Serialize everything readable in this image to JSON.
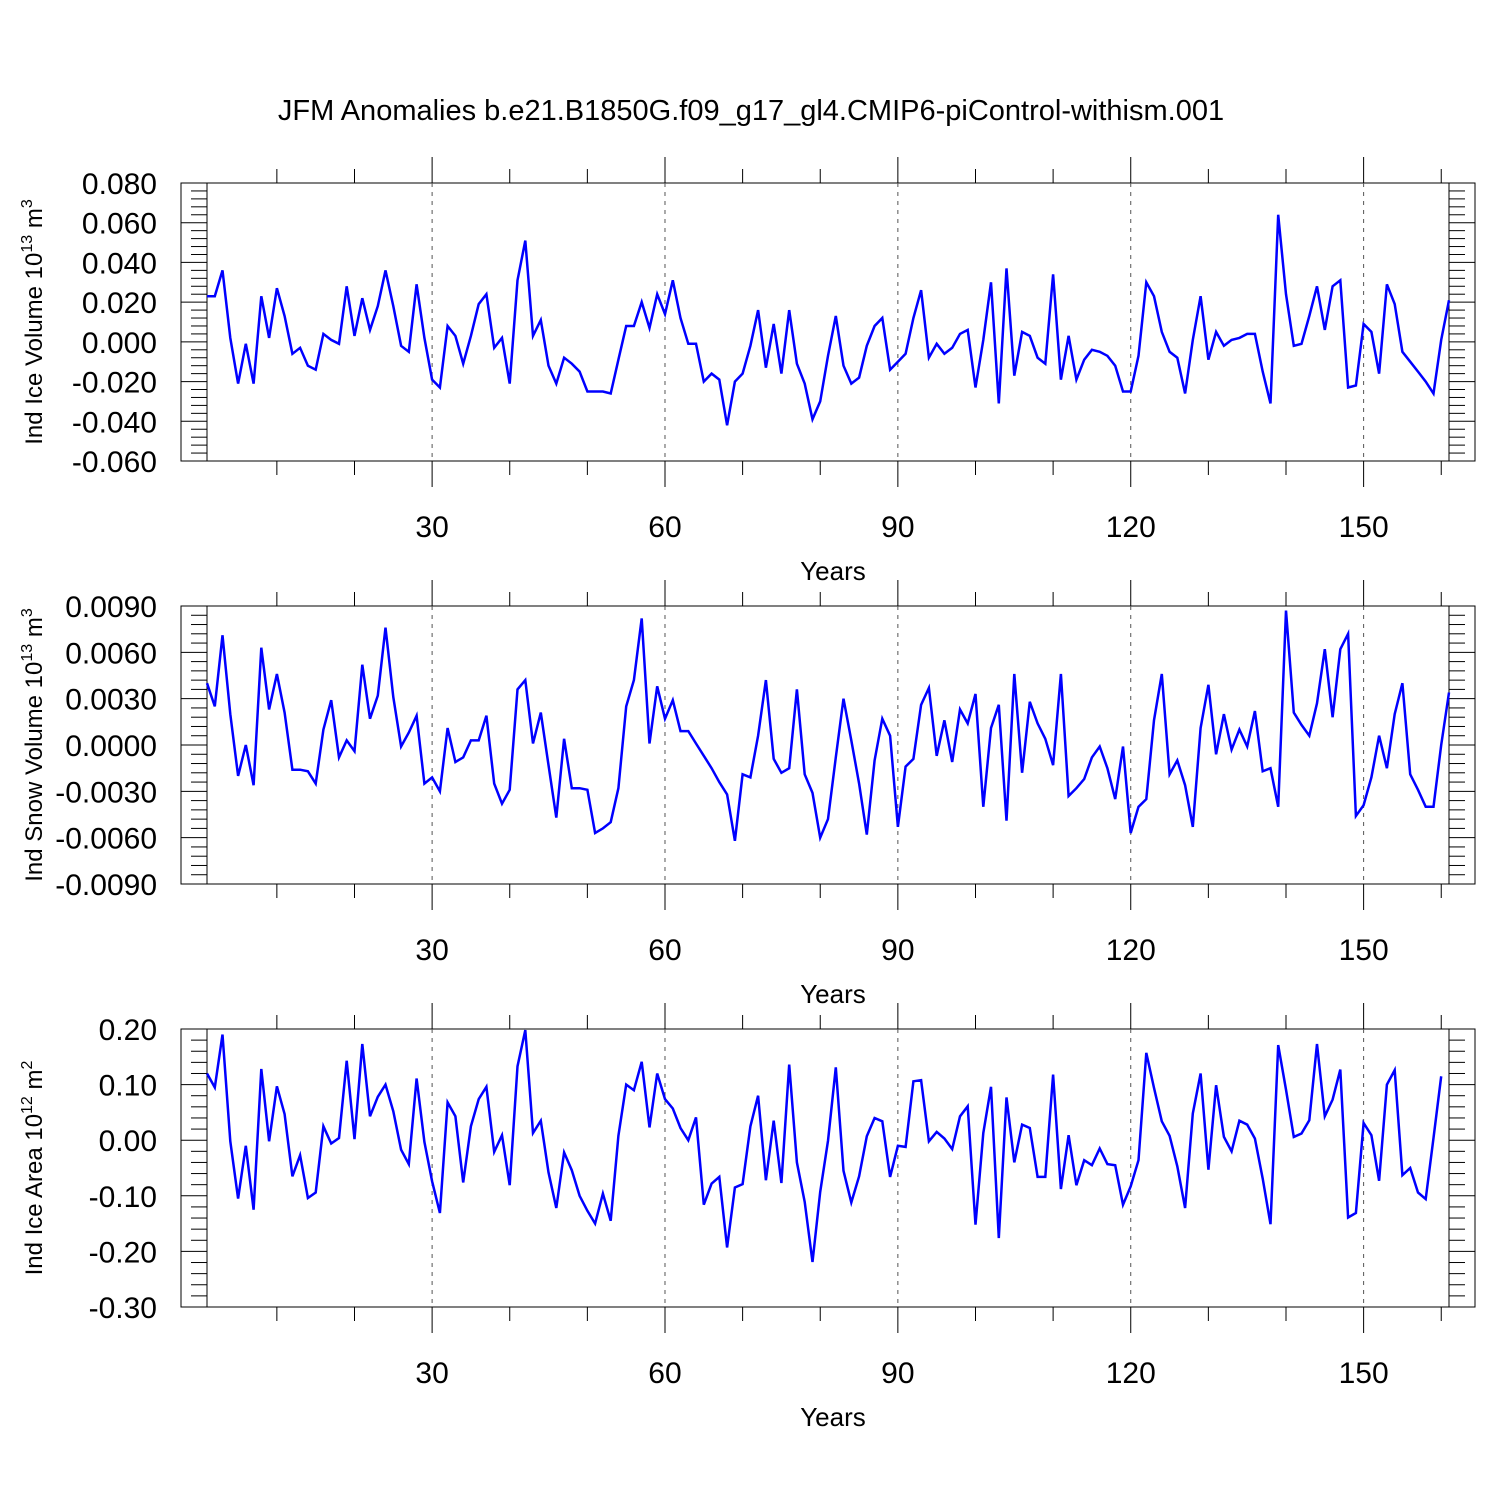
{
  "title": "JFM Anomalies b.e21.B1850G.f09_g17_gl4.CMIP6-piControl-withism.001",
  "line_color": "#0000ff",
  "chart_data": [
    {
      "type": "line",
      "series_name": "Ind Ice Volume",
      "ylabel": "Ind Ice Volume 10",
      "ylabel_exponent": "13",
      "ylabel_unit": "m",
      "ylabel_unit_exponent": "3",
      "xlabel": "Years",
      "xlim": [
        1,
        161
      ],
      "ylim": [
        -0.06,
        0.08
      ],
      "xticks": [
        30,
        60,
        90,
        120,
        150
      ],
      "xtick_labels": [
        "30",
        "60",
        "90",
        "120",
        "150"
      ],
      "yticks": [
        -0.06,
        -0.04,
        -0.02,
        0.0,
        0.02,
        0.04,
        0.06,
        0.08
      ],
      "ytick_labels": [
        "-0.060",
        "-0.040",
        "-0.020",
        "0.000",
        "0.020",
        "0.040",
        "0.060",
        "0.080"
      ],
      "values": [
        0.023,
        0.023,
        0.036,
        0.002,
        -0.021,
        -0.001,
        -0.021,
        0.023,
        0.002,
        0.027,
        0.013,
        -0.006,
        -0.003,
        -0.012,
        -0.014,
        0.004,
        0.001,
        -0.001,
        0.028,
        0.003,
        0.022,
        0.006,
        0.018,
        0.036,
        0.018,
        -0.002,
        -0.005,
        0.029,
        0.002,
        -0.019,
        -0.023,
        0.008,
        0.003,
        -0.011,
        0.003,
        0.019,
        0.024,
        -0.003,
        0.002,
        -0.021,
        0.031,
        0.051,
        0.003,
        0.011,
        -0.012,
        -0.021,
        -0.008,
        -0.011,
        -0.015,
        -0.025,
        -0.025,
        -0.025,
        -0.026,
        -0.009,
        0.008,
        0.008,
        0.02,
        0.007,
        0.024,
        0.014,
        0.031,
        0.012,
        -0.001,
        -0.001,
        -0.02,
        -0.016,
        -0.019,
        -0.042,
        -0.02,
        -0.016,
        -0.002,
        0.016,
        -0.013,
        0.009,
        -0.016,
        0.016,
        -0.011,
        -0.021,
        -0.039,
        -0.03,
        -0.007,
        0.013,
        -0.012,
        -0.021,
        -0.018,
        -0.002,
        0.008,
        0.012,
        -0.014,
        -0.01,
        -0.006,
        0.012,
        0.026,
        -0.008,
        -0.001,
        -0.006,
        -0.003,
        0.004,
        0.006,
        -0.023,
        0.001,
        0.03,
        -0.031,
        0.037,
        -0.017,
        0.005,
        0.003,
        -0.008,
        -0.011,
        0.034,
        -0.019,
        0.003,
        -0.019,
        -0.009,
        -0.004,
        -0.005,
        -0.007,
        -0.012,
        -0.025,
        -0.025,
        -0.007,
        0.03,
        0.023,
        0.005,
        -0.005,
        -0.008,
        -0.026,
        0.001,
        0.023,
        -0.009,
        0.005,
        -0.002,
        0.001,
        0.002,
        0.004,
        0.004,
        -0.015,
        -0.031,
        0.064,
        0.024,
        -0.002,
        -0.001,
        0.013,
        0.028,
        0.006,
        0.028,
        0.031,
        -0.023,
        -0.022,
        0.009,
        0.005,
        -0.016,
        0.029,
        0.019,
        -0.005,
        -0.01,
        -0.015,
        -0.02,
        -0.026,
        0.001,
        0.021
      ]
    },
    {
      "type": "line",
      "series_name": "Ind Snow Volume",
      "ylabel": "Ind Snow Volume 10",
      "ylabel_exponent": "13",
      "ylabel_unit": "m",
      "ylabel_unit_exponent": "3",
      "xlabel": "Years",
      "xlim": [
        1,
        161
      ],
      "ylim": [
        -0.009,
        0.009
      ],
      "xticks": [
        30,
        60,
        90,
        120,
        150
      ],
      "xtick_labels": [
        "30",
        "60",
        "90",
        "120",
        "150"
      ],
      "yticks": [
        -0.009,
        -0.006,
        -0.003,
        0.0,
        0.003,
        0.006,
        0.009
      ],
      "ytick_labels": [
        "-0.0090",
        "-0.0060",
        "-0.0030",
        "0.0000",
        "0.0030",
        "0.0060",
        "0.0090"
      ],
      "values": [
        0.004,
        0.0025,
        0.0071,
        0.002,
        -0.002,
        0.0,
        -0.0026,
        0.0063,
        0.0023,
        0.0046,
        0.0021,
        -0.0016,
        -0.0016,
        -0.0017,
        -0.0025,
        0.001,
        0.0029,
        -0.0008,
        0.0003,
        -0.0004,
        0.0052,
        0.0017,
        0.0032,
        0.0076,
        0.0031,
        -0.0001,
        0.0008,
        0.0019,
        -0.0025,
        -0.0021,
        -0.003,
        0.0011,
        -0.0011,
        -0.0008,
        0.0003,
        0.0003,
        0.0019,
        -0.0025,
        -0.0038,
        -0.0029,
        0.0036,
        0.0042,
        0.0001,
        0.0021,
        -0.0013,
        -0.0047,
        0.0004,
        -0.0028,
        -0.0028,
        -0.0029,
        -0.0057,
        -0.0054,
        -0.005,
        -0.0028,
        0.0025,
        0.0042,
        0.0082,
        0.0001,
        0.0038,
        0.0017,
        0.0029,
        0.0009,
        0.0009,
        0.0001,
        -0.0007,
        -0.0015,
        -0.0024,
        -0.0032,
        -0.0062,
        -0.0019,
        -0.0021,
        0.0006,
        0.0042,
        -0.0009,
        -0.0018,
        -0.0015,
        0.0036,
        -0.0019,
        -0.0031,
        -0.006,
        -0.0048,
        -0.0008,
        0.003,
        0.0003,
        -0.0025,
        -0.0058,
        -0.001,
        0.0017,
        0.0006,
        -0.0053,
        -0.0014,
        -0.0009,
        0.0026,
        0.0037,
        -0.0007,
        0.0016,
        -0.0011,
        0.0023,
        0.0014,
        0.0033,
        -0.004,
        0.0011,
        0.0026,
        -0.0049,
        0.0046,
        -0.0018,
        0.0028,
        0.0014,
        0.0004,
        -0.0013,
        0.0046,
        -0.0033,
        -0.0028,
        -0.0022,
        -0.0008,
        -0.0001,
        -0.0015,
        -0.0035,
        -0.0001,
        -0.0057,
        -0.004,
        -0.0035,
        0.0016,
        0.0046,
        -0.0019,
        -0.001,
        -0.0026,
        -0.0053,
        0.0011,
        0.0039,
        -0.0006,
        0.002,
        -0.0003,
        0.001,
        -0.0001,
        0.0022,
        -0.0017,
        -0.0015,
        -0.004,
        0.0087,
        0.0021,
        0.0013,
        0.0006,
        0.0027,
        0.0062,
        0.0018,
        0.0062,
        0.0072,
        -0.0046,
        -0.0039,
        -0.0021,
        0.0006,
        -0.0015,
        0.002,
        0.004,
        -0.0019,
        -0.0029,
        -0.004,
        -0.004,
        0.0,
        0.0034
      ]
    },
    {
      "type": "line",
      "series_name": "Ind Ice Area",
      "ylabel": "Ind Ice Area 10",
      "ylabel_exponent": "12",
      "ylabel_unit": "m",
      "ylabel_unit_exponent": "2",
      "xlabel": "Years",
      "xlim": [
        1,
        161
      ],
      "ylim": [
        -0.3,
        0.2
      ],
      "xticks": [
        30,
        60,
        90,
        120,
        150
      ],
      "xtick_labels": [
        "30",
        "60",
        "90",
        "120",
        "150"
      ],
      "yticks": [
        -0.3,
        -0.2,
        -0.1,
        0.0,
        0.1,
        0.2
      ],
      "ytick_labels": [
        "-0.30",
        "-0.20",
        "-0.10",
        "0.00",
        "0.10",
        "0.20"
      ],
      "values": [
        0.12,
        0.095,
        0.19,
        -0.002,
        -0.105,
        -0.01,
        -0.125,
        0.128,
        -0.002,
        0.097,
        0.047,
        -0.065,
        -0.027,
        -0.104,
        -0.094,
        0.025,
        -0.006,
        0.004,
        0.143,
        0.002,
        0.173,
        0.043,
        0.078,
        0.1,
        0.052,
        -0.017,
        -0.043,
        0.111,
        -0.003,
        -0.074,
        -0.131,
        0.068,
        0.043,
        -0.076,
        0.025,
        0.074,
        0.096,
        -0.021,
        0.009,
        -0.081,
        0.133,
        0.198,
        0.013,
        0.035,
        -0.058,
        -0.122,
        -0.022,
        -0.054,
        -0.1,
        -0.127,
        -0.15,
        -0.096,
        -0.145,
        0.008,
        0.1,
        0.09,
        0.141,
        0.023,
        0.12,
        0.074,
        0.057,
        0.022,
        0.0,
        0.041,
        -0.116,
        -0.078,
        -0.066,
        -0.193,
        -0.085,
        -0.079,
        0.025,
        0.08,
        -0.072,
        0.035,
        -0.077,
        0.136,
        -0.04,
        -0.111,
        -0.219,
        -0.093,
        -0.001,
        0.131,
        -0.055,
        -0.112,
        -0.065,
        0.007,
        0.04,
        0.034,
        -0.066,
        -0.01,
        -0.012,
        0.106,
        0.108,
        -0.002,
        0.015,
        0.003,
        -0.016,
        0.043,
        0.061,
        -0.152,
        0.013,
        0.096,
        -0.176,
        0.077,
        -0.04,
        0.028,
        0.022,
        -0.066,
        -0.066,
        0.118,
        -0.088,
        0.009,
        -0.081,
        -0.036,
        -0.045,
        -0.015,
        -0.043,
        -0.045,
        -0.116,
        -0.083,
        -0.036,
        0.157,
        0.094,
        0.034,
        0.008,
        -0.047,
        -0.122,
        0.048,
        0.12,
        -0.053,
        0.099,
        0.006,
        -0.02,
        0.035,
        0.028,
        0.003,
        -0.069,
        -0.151,
        0.171,
        0.091,
        0.006,
        0.012,
        0.036,
        0.173,
        0.043,
        0.073,
        0.127,
        -0.139,
        -0.131,
        0.031,
        0.009,
        -0.073,
        0.1,
        0.126,
        -0.063,
        -0.05,
        -0.094,
        -0.106,
        0.004,
        0.115
      ]
    }
  ]
}
